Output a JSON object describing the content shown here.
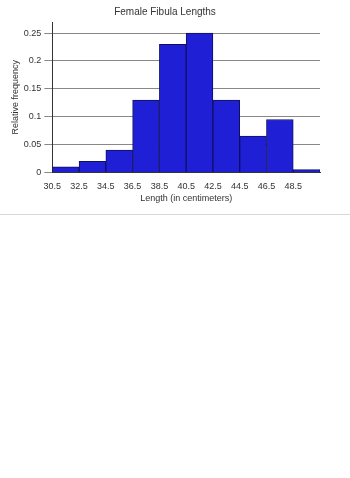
{
  "chart_data": {
    "type": "histogram",
    "title": "Female Fibula Lengths",
    "x_label": "Length (in centimeters)",
    "y_label": "Relative frequency",
    "bins": [
      30.5,
      32.5,
      34.5,
      36.5,
      38.5,
      40.5,
      42.5,
      44.5,
      46.5,
      48.5,
      50.5
    ],
    "values": [
      0.01,
      0.02,
      0.04,
      0.13,
      0.23,
      0.25,
      0.13,
      0.065,
      0.095,
      0.005
    ],
    "color": "#1f1fd6",
    "xlim": [
      30.5,
      50.5
    ],
    "xticks": [
      30.5,
      32.5,
      34.5,
      36.5,
      38.5,
      40.5,
      42.5,
      44.5,
      46.5,
      48.5
    ],
    "ylim": [
      0,
      0.27
    ],
    "yticks": [
      0,
      0.05,
      0.1,
      0.15,
      0.2,
      0.25
    ],
    "grid": true
  }
}
